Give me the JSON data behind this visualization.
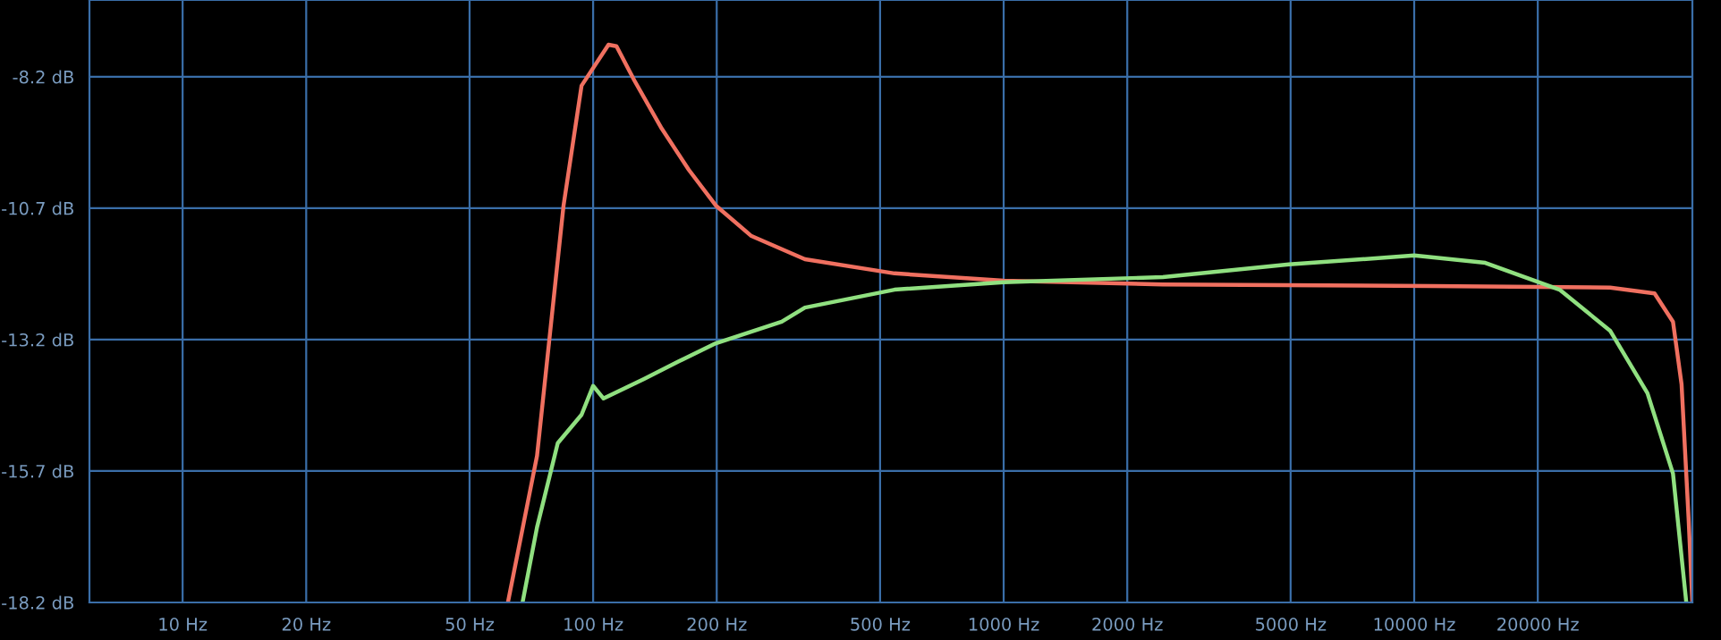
{
  "chart_data": {
    "type": "line",
    "log": "x",
    "grid": true,
    "xlim": [
      5.93,
      47600
    ],
    "ylim": [
      -18.2,
      -6.74
    ],
    "xticks": [
      {
        "value": 10,
        "label": "10 Hz"
      },
      {
        "value": 20,
        "label": "20 Hz"
      },
      {
        "value": 50,
        "label": "50 Hz"
      },
      {
        "value": 100,
        "label": "100 Hz"
      },
      {
        "value": 200,
        "label": "200 Hz"
      },
      {
        "value": 500,
        "label": "500 Hz"
      },
      {
        "value": 1000,
        "label": "1000 Hz"
      },
      {
        "value": 2000,
        "label": "2000 Hz"
      },
      {
        "value": 5000,
        "label": "5000 Hz"
      },
      {
        "value": 10000,
        "label": "10000 Hz"
      },
      {
        "value": 20000,
        "label": "20000 Hz"
      }
    ],
    "yticks": [
      {
        "value": -8.2,
        "label": "-8.2 dB"
      },
      {
        "value": -10.7,
        "label": "-10.7 dB"
      },
      {
        "value": -13.2,
        "label": "-13.2 dB"
      },
      {
        "value": -15.7,
        "label": "-15.7 dB"
      },
      {
        "value": -18.2,
        "label": "-18.2 dB"
      }
    ],
    "series": [
      {
        "color": "#f07060",
        "x": [
          62,
          73,
          84.7,
          93.7,
          109,
          114,
          126,
          147,
          171,
          199,
          243,
          328,
          542,
          1000,
          2443,
          11000,
          30000,
          38500,
          42700,
          44800,
          46600,
          47600
        ],
        "values": [
          -18.2,
          -15.41,
          -10.65,
          -8.37,
          -7.59,
          -7.62,
          -8.27,
          -9.19,
          -9.97,
          -10.65,
          -11.23,
          -11.67,
          -11.94,
          -12.08,
          -12.15,
          -12.18,
          -12.21,
          -12.32,
          -12.86,
          -14.05,
          -16.6,
          -18.2
        ]
      },
      {
        "color": "#90e080",
        "x": [
          67.3,
          73,
          82,
          93.7,
          100,
          106,
          133,
          162,
          199,
          288,
          328,
          542,
          1000,
          2443,
          4955,
          10000,
          14900,
          22600,
          30000,
          37000,
          42700,
          46000
        ],
        "values": [
          -18.2,
          -16.77,
          -15.17,
          -14.63,
          -14.08,
          -14.32,
          -13.95,
          -13.61,
          -13.27,
          -12.86,
          -12.59,
          -12.25,
          -12.11,
          -12.01,
          -11.77,
          -11.6,
          -11.74,
          -12.25,
          -13.03,
          -14.22,
          -15.75,
          -18.2
        ]
      }
    ]
  }
}
